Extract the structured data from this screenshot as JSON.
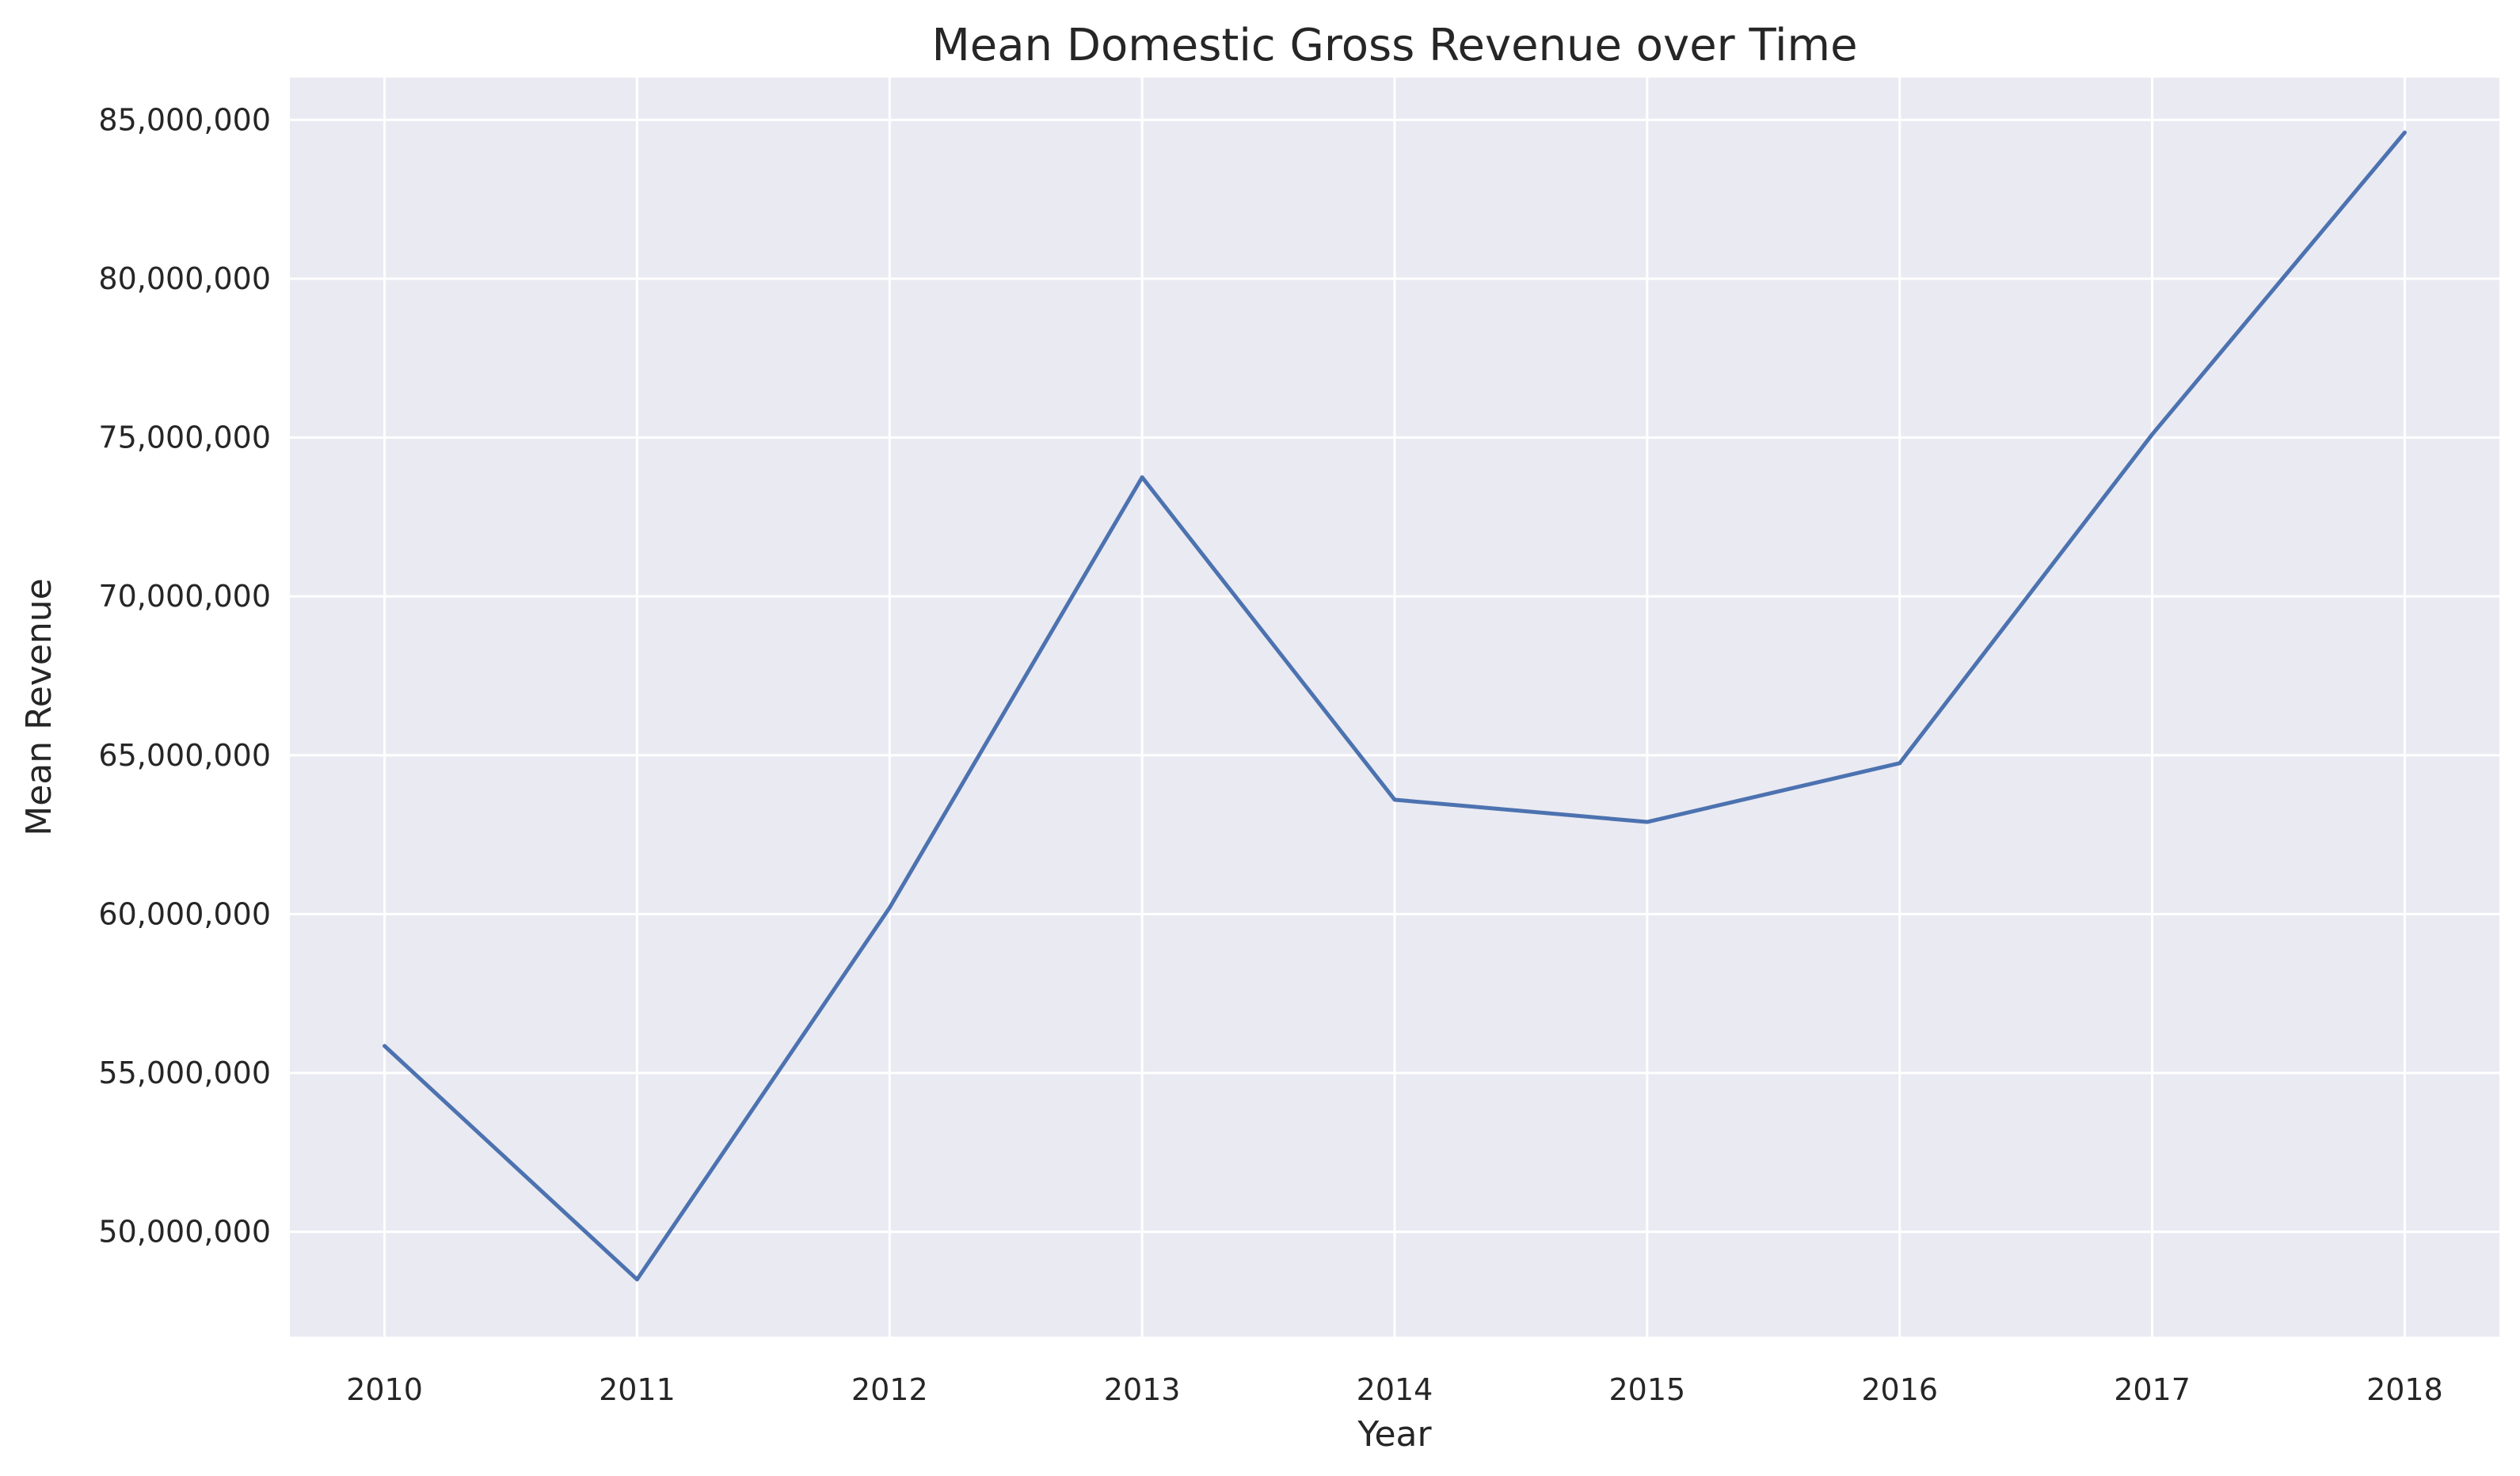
{
  "chart_data": {
    "type": "line",
    "title": "Mean Domestic Gross Revenue over Time",
    "xlabel": "Year",
    "ylabel": "Mean Revenue",
    "x": [
      2010,
      2011,
      2012,
      2013,
      2014,
      2015,
      2016,
      2017,
      2018
    ],
    "x_tick_labels": [
      "2010",
      "2011",
      "2012",
      "2013",
      "2014",
      "2015",
      "2016",
      "2017",
      "2018"
    ],
    "series": [
      {
        "values": [
          55850000,
          48500000,
          60200000,
          73750000,
          63600000,
          62900000,
          64750000,
          75100000,
          84600000
        ]
      }
    ],
    "y_ticks": [
      50000000,
      55000000,
      60000000,
      65000000,
      70000000,
      75000000,
      80000000,
      85000000
    ],
    "y_tick_labels": [
      "50,000,000",
      "55,000,000",
      "60,000,000",
      "65,000,000",
      "70,000,000",
      "75,000,000",
      "80,000,000",
      "85,000,000"
    ],
    "xlim": [
      2009.625,
      2018.375
    ],
    "ylim": [
      46700000,
      86330000
    ],
    "grid": true,
    "colors": {
      "background": "#eaeaf2",
      "grid": "#ffffff",
      "line": "#4c72b0"
    }
  }
}
